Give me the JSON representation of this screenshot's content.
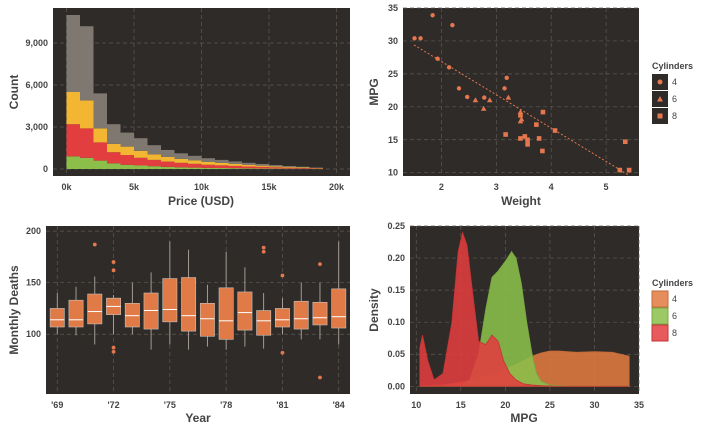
{
  "colors": {
    "panel": "#2f2b28",
    "accent": "#e5774e",
    "grey": "#7f7870",
    "yellow": "#f2b632",
    "red": "#e33e3f",
    "green": "#8bbf4a",
    "orange": "#e07a3f",
    "boxes": "#e07a47"
  },
  "chart_data": [
    {
      "type": "bar",
      "subtype": "stacked-histogram",
      "xlabel": "Price (USD)",
      "ylabel": "Count",
      "xlim": [
        -1000,
        21000
      ],
      "ylim": [
        -500,
        11500
      ],
      "xticks": [
        0,
        5000,
        10000,
        15000,
        20000
      ],
      "xtick_labels": [
        "0k",
        "5k",
        "10k",
        "15k",
        "20k"
      ],
      "yticks": [
        0,
        3000,
        6000,
        9000
      ],
      "ytick_labels": [
        "0",
        "3,000",
        "6,000",
        "9,000"
      ],
      "bin_width": 1000,
      "bin_starts": [
        0,
        1000,
        2000,
        3000,
        4000,
        5000,
        6000,
        7000,
        8000,
        9000,
        10000,
        11000,
        12000,
        13000,
        14000,
        15000,
        16000,
        17000,
        18000
      ],
      "series": [
        {
          "name": "green",
          "values": [
            900,
            800,
            600,
            400,
            300,
            250,
            200,
            150,
            120,
            100,
            80,
            70,
            60,
            50,
            40,
            30,
            25,
            20,
            15
          ]
        },
        {
          "name": "red",
          "values": [
            2300,
            2100,
            1300,
            800,
            700,
            550,
            450,
            380,
            320,
            270,
            220,
            190,
            160,
            130,
            110,
            90,
            70,
            50,
            30
          ]
        },
        {
          "name": "yellow",
          "values": [
            2300,
            2000,
            1000,
            600,
            600,
            500,
            400,
            330,
            280,
            240,
            200,
            170,
            140,
            110,
            90,
            70,
            50,
            40,
            25
          ]
        },
        {
          "name": "grey",
          "values": [
            5500,
            5300,
            2500,
            1400,
            1000,
            900,
            650,
            500,
            400,
            330,
            270,
            220,
            180,
            150,
            120,
            90,
            70,
            50,
            30
          ]
        }
      ]
    },
    {
      "type": "scatter",
      "xlabel": "Weight",
      "ylabel": "MPG",
      "xlim": [
        1.3,
        5.6
      ],
      "ylim": [
        9.5,
        35
      ],
      "xticks": [
        2,
        3,
        4,
        5
      ],
      "xtick_labels": [
        "2",
        "3",
        "4",
        "5"
      ],
      "yticks": [
        10,
        15,
        20,
        25,
        30,
        35
      ],
      "ytick_labels": [
        "10",
        "15",
        "20",
        "25",
        "30",
        "35"
      ],
      "trend_line": {
        "x": [
          1.5,
          5.4
        ],
        "y": [
          29.4,
          9.7
        ]
      },
      "legend_title": "Cylinders",
      "series": [
        {
          "name": "4",
          "marker": "circle",
          "points": [
            [
              1.51,
              30.4
            ],
            [
              1.84,
              33.9
            ],
            [
              1.93,
              27.3
            ],
            [
              2.2,
              32.4
            ],
            [
              2.14,
              26
            ],
            [
              2.32,
              22.8
            ],
            [
              2.78,
              21.4
            ],
            [
              3.19,
              24.4
            ],
            [
              3.15,
              22.8
            ],
            [
              2.47,
              21.5
            ],
            [
              1.62,
              30.4
            ]
          ]
        },
        {
          "name": "6",
          "marker": "triangle",
          "points": [
            [
              2.62,
              21
            ],
            [
              2.88,
              21
            ],
            [
              3.22,
              21.4
            ],
            [
              3.46,
              18.1
            ],
            [
              3.44,
              19.2
            ],
            [
              3.44,
              17.8
            ],
            [
              2.77,
              19.7
            ]
          ]
        },
        {
          "name": "8",
          "marker": "square",
          "points": [
            [
              3.44,
              18.7
            ],
            [
              3.57,
              14.3
            ],
            [
              4.07,
              16.4
            ],
            [
              3.73,
              17.3
            ],
            [
              3.78,
              15.2
            ],
            [
              5.25,
              10.4
            ],
            [
              5.42,
              10.4
            ],
            [
              5.35,
              14.7
            ],
            [
              3.52,
              15.5
            ],
            [
              3.44,
              15.2
            ],
            [
              3.84,
              13.3
            ],
            [
              3.85,
              19.2
            ],
            [
              3.17,
              15.8
            ],
            [
              3.57,
              15
            ]
          ]
        }
      ]
    },
    {
      "type": "box",
      "xlabel": "Year",
      "ylabel": "Monthly Deaths",
      "xlim": [
        1968.4,
        1984.6
      ],
      "ylim": [
        42,
        205
      ],
      "xticks": [
        1969,
        1972,
        1975,
        1978,
        1981,
        1984
      ],
      "xtick_labels": [
        "'69",
        "'72",
        "'75",
        "'78",
        "'81",
        "'84"
      ],
      "yticks": [
        100,
        150,
        200
      ],
      "ytick_labels": [
        "100",
        "150",
        "200"
      ],
      "boxes": [
        {
          "year": 1969,
          "min": 100,
          "q1": 107,
          "median": 114,
          "q3": 125,
          "max": 140,
          "outliers": []
        },
        {
          "year": 1970,
          "min": 99,
          "q1": 107,
          "median": 114,
          "q3": 133,
          "max": 146,
          "outliers": []
        },
        {
          "year": 1971,
          "min": 90,
          "q1": 110,
          "median": 122,
          "q3": 139,
          "max": 156,
          "outliers": [
            187
          ]
        },
        {
          "year": 1972,
          "min": 100,
          "q1": 119,
          "median": 127,
          "q3": 135,
          "max": 138,
          "outliers": [
            162,
            170,
            87,
            83
          ]
        },
        {
          "year": 1973,
          "min": 100,
          "q1": 107,
          "median": 118,
          "q3": 130,
          "max": 150,
          "outliers": []
        },
        {
          "year": 1974,
          "min": 85,
          "q1": 105,
          "median": 123,
          "q3": 140,
          "max": 160,
          "outliers": []
        },
        {
          "year": 1975,
          "min": 90,
          "q1": 112,
          "median": 124,
          "q3": 154,
          "max": 190,
          "outliers": []
        },
        {
          "year": 1976,
          "min": 85,
          "q1": 103,
          "median": 118,
          "q3": 155,
          "max": 182,
          "outliers": []
        },
        {
          "year": 1977,
          "min": 88,
          "q1": 98,
          "median": 115,
          "q3": 130,
          "max": 148,
          "outliers": []
        },
        {
          "year": 1978,
          "min": 85,
          "q1": 95,
          "median": 113,
          "q3": 145,
          "max": 180,
          "outliers": []
        },
        {
          "year": 1979,
          "min": 88,
          "q1": 104,
          "median": 121,
          "q3": 141,
          "max": 165,
          "outliers": []
        },
        {
          "year": 1980,
          "min": 86,
          "q1": 99,
          "median": 113,
          "q3": 123,
          "max": 140,
          "outliers": [
            184,
            180
          ]
        },
        {
          "year": 1981,
          "min": 100,
          "q1": 107,
          "median": 114,
          "q3": 125,
          "max": 135,
          "outliers": [
            157,
            82
          ]
        },
        {
          "year": 1982,
          "min": 95,
          "q1": 105,
          "median": 115,
          "q3": 132,
          "max": 150,
          "outliers": []
        },
        {
          "year": 1983,
          "min": 95,
          "q1": 109,
          "median": 116,
          "q3": 131,
          "max": 150,
          "outliers": [
            168,
            58
          ]
        },
        {
          "year": 1984,
          "min": 90,
          "q1": 106,
          "median": 117,
          "q3": 144,
          "max": 190,
          "outliers": []
        }
      ]
    },
    {
      "type": "area",
      "subtype": "density",
      "xlabel": "MPG",
      "ylabel": "Density",
      "xlim": [
        9.3,
        35
      ],
      "ylim": [
        -0.012,
        0.25
      ],
      "xticks": [
        10,
        15,
        20,
        25,
        30,
        35
      ],
      "xtick_labels": [
        "10",
        "15",
        "20",
        "25",
        "30",
        "35"
      ],
      "yticks": [
        0,
        0.05,
        0.1,
        0.15,
        0.2,
        0.25
      ],
      "ytick_labels": [
        "0.00",
        "0.05",
        "0.10",
        "0.15",
        "0.20",
        "0.25"
      ],
      "legend_title": "Cylinders",
      "series": [
        {
          "name": "4",
          "x": [
            10.4,
            13,
            15,
            17,
            19,
            20,
            21,
            22,
            23,
            24,
            25,
            26,
            27,
            28,
            30,
            32,
            33.9
          ],
          "y": [
            0,
            0.002,
            0.006,
            0.012,
            0.02,
            0.027,
            0.033,
            0.04,
            0.047,
            0.052,
            0.055,
            0.055,
            0.054,
            0.053,
            0.054,
            0.053,
            0.047
          ]
        },
        {
          "name": "6",
          "x": [
            10.4,
            15,
            16,
            17,
            17.8,
            18.5,
            19.2,
            20,
            20.7,
            21.2,
            21.8,
            22.4,
            23,
            23.5,
            24,
            25,
            26,
            27,
            33.9
          ],
          "y": [
            0,
            0.001,
            0.01,
            0.05,
            0.12,
            0.17,
            0.18,
            0.195,
            0.21,
            0.2,
            0.16,
            0.1,
            0.05,
            0.02,
            0.008,
            0.002,
            0.001,
            0,
            0
          ]
        },
        {
          "name": "8",
          "x": [
            10.4,
            10.7,
            11.3,
            12,
            13,
            14,
            14.7,
            15.2,
            15.7,
            16.3,
            17,
            17.8,
            18.5,
            19.2,
            19.8,
            20.5,
            21.2,
            22,
            23,
            24,
            26,
            33.9
          ],
          "y": [
            0.06,
            0.08,
            0.04,
            0.01,
            0.02,
            0.1,
            0.21,
            0.24,
            0.22,
            0.15,
            0.07,
            0.065,
            0.08,
            0.07,
            0.04,
            0.02,
            0.01,
            0.004,
            0.002,
            0.001,
            0,
            0
          ]
        }
      ]
    }
  ]
}
